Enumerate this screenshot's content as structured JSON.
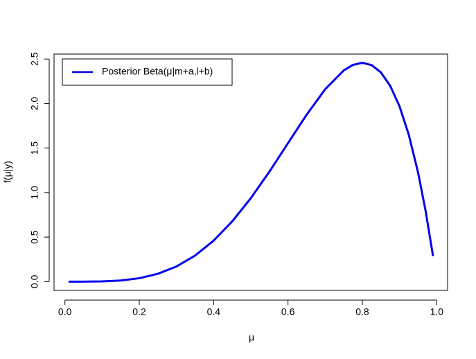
{
  "chart_data": {
    "type": "line",
    "xlabel": "μ",
    "ylabel": "f(μ|y)",
    "x": [
      0.01,
      0.05,
      0.1,
      0.15,
      0.2,
      0.25,
      0.3,
      0.35,
      0.4,
      0.45,
      0.5,
      0.55,
      0.6,
      0.65,
      0.7,
      0.75,
      0.775,
      0.8,
      0.825,
      0.85,
      0.875,
      0.9,
      0.925,
      0.95,
      0.97,
      0.99
    ],
    "series": [
      {
        "name": "Posterior Beta(μ|m+a,l+b)",
        "color": "#0000ee",
        "values": [
          0.0,
          0.0002,
          0.0027,
          0.0129,
          0.0384,
          0.0879,
          0.1701,
          0.2926,
          0.4608,
          0.6766,
          0.9375,
          1.2353,
          1.5552,
          1.8743,
          2.1609,
          2.373,
          2.4351,
          2.4576,
          2.4321,
          2.349,
          2.1982,
          1.9683,
          1.6472,
          1.2218,
          0.7968,
          0.2882
        ]
      }
    ],
    "xlim": [
      -0.0292,
      1.0292
    ],
    "ylim": [
      -0.0983,
      2.556
    ],
    "xticks": [
      {
        "value": 0,
        "label": "0.0"
      },
      0.2,
      0.4,
      0.6,
      0.8,
      {
        "value": 1,
        "label": "1.0"
      }
    ],
    "yticks": [
      {
        "value": 0,
        "label": "0.0"
      },
      0.5,
      {
        "value": 1,
        "label": "1.0"
      },
      1.5,
      {
        "value": 2,
        "label": "2.0"
      },
      2.5
    ],
    "legend": "top-left",
    "grid": false
  }
}
